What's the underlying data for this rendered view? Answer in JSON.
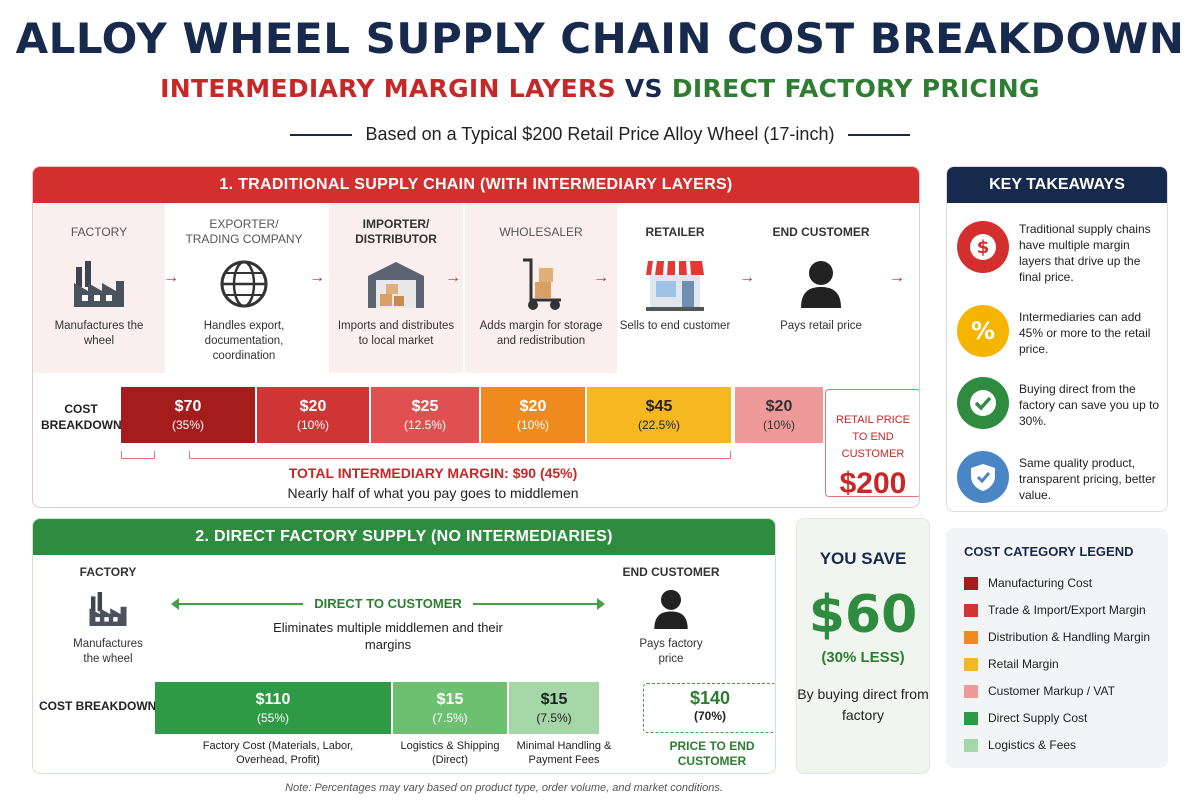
{
  "title": "ALLOY WHEEL SUPPLY CHAIN COST BREAKDOWN",
  "subtitle": {
    "part1": "INTERMEDIARY MARGIN LAYERS",
    "vs": "VS",
    "part2": "DIRECT FACTORY PRICING"
  },
  "basis": "Based on a Typical $200 Retail Price Alloy Wheel (17-inch)",
  "traditional": {
    "heading": "1. TRADITIONAL SUPPLY CHAIN (WITH INTERMEDIARY LAYERS)",
    "stages": [
      {
        "title": "FACTORY",
        "desc": "Manufactures the wheel",
        "icon": "factory-icon"
      },
      {
        "title": "EXPORTER/ TRADING COMPANY",
        "desc": "Handles export, documentation, coordination",
        "icon": "globe-icon"
      },
      {
        "title": "IMPORTER/ DISTRIBUTOR",
        "desc": "Imports and distributes to local market",
        "icon": "warehouse-icon"
      },
      {
        "title": "WHOLESALER",
        "desc": "Adds margin for storage and redistribution",
        "icon": "hand-truck-icon"
      },
      {
        "title": "RETAILER",
        "desc": "Sells to end customer",
        "icon": "storefront-icon"
      },
      {
        "title": "END CUSTOMER",
        "desc": "Pays retail price",
        "icon": "person-icon"
      }
    ],
    "cost_label": "COST BREAKDOWN",
    "segments": [
      {
        "value": "$70",
        "pct": "(35%)",
        "color": "#a51c1c"
      },
      {
        "value": "$20",
        "pct": "(10%)",
        "color": "#cf3535"
      },
      {
        "value": "$25",
        "pct": "(12.5%)",
        "color": "#e05050"
      },
      {
        "value": "$20",
        "pct": "(10%)",
        "color": "#ef8a1e"
      },
      {
        "value": "$45",
        "pct": "(22.5%)",
        "color": "#f6b820"
      },
      {
        "value": "$20",
        "pct": "(10%)",
        "color": "#ef9a9a"
      }
    ],
    "total_margin": "TOTAL INTERMEDIARY MARGIN: $90 (45%)",
    "margin_note": "Nearly half of what you pay goes to middlemen",
    "retail_label": "RETAIL PRICE TO END CUSTOMER",
    "retail_value": "$200"
  },
  "direct": {
    "heading": "2. DIRECT FACTORY SUPPLY (NO INTERMEDIARIES)",
    "factory_title": "FACTORY",
    "factory_desc": "Manufactures the wheel",
    "customer_title": "END CUSTOMER",
    "customer_desc": "Pays factory price",
    "arrow_label": "DIRECT TO CUSTOMER",
    "arrow_desc": "Eliminates multiple middlemen and their margins",
    "cost_label": "COST BREAKDOWN",
    "segments": [
      {
        "value": "$110",
        "pct": "(55%)",
        "note": "Factory Cost (Materials, Labor, Overhead, Profit)",
        "color": "#2e9a45"
      },
      {
        "value": "$15",
        "pct": "(7.5%)",
        "note": "Logistics & Shipping (Direct)",
        "color": "#6cc06f"
      },
      {
        "value": "$15",
        "pct": "(7.5%)",
        "note": "Minimal Handling & Payment Fees",
        "color": "#a5d6a7"
      }
    ],
    "price_value": "$140",
    "price_pct": "(70%)",
    "price_label": "PRICE TO END CUSTOMER"
  },
  "savings": {
    "title": "YOU SAVE",
    "amount": "$60",
    "pct": "(30% LESS)",
    "desc": "By buying direct from factory"
  },
  "takeaways": {
    "heading": "KEY TAKEAWAYS",
    "items": [
      {
        "text": "Traditional supply chains have multiple margin layers that drive up the final price.",
        "icon": "dollar-icon",
        "color": "#d32f2f"
      },
      {
        "text": "Intermediaries can add 45% or more to the retail price.",
        "icon": "percent-icon",
        "color": "#f5b400"
      },
      {
        "text": "Buying direct from the factory can save you up to 30%.",
        "icon": "checkmark-icon",
        "color": "#2e8b3f"
      },
      {
        "text": "Same quality product, transparent pricing, better value.",
        "icon": "shield-icon",
        "color": "#4a86c5"
      }
    ]
  },
  "legend": {
    "title": "COST CATEGORY LEGEND",
    "items": [
      {
        "label": "Manufacturing Cost",
        "color": "#a51c1c"
      },
      {
        "label": "Trade & Import/Export Margin",
        "color": "#cf3535"
      },
      {
        "label": "Distribution & Handling Margin",
        "color": "#ef8a1e"
      },
      {
        "label": "Retail Margin",
        "color": "#f6b820"
      },
      {
        "label": "Customer Markup / VAT",
        "color": "#ef9a9a"
      },
      {
        "label": "Direct Supply Cost",
        "color": "#2e9a45"
      },
      {
        "label": "Logistics & Fees",
        "color": "#a5d6a7"
      }
    ]
  },
  "footnote": "Note: Percentages may vary based on product type, order volume, and market conditions."
}
